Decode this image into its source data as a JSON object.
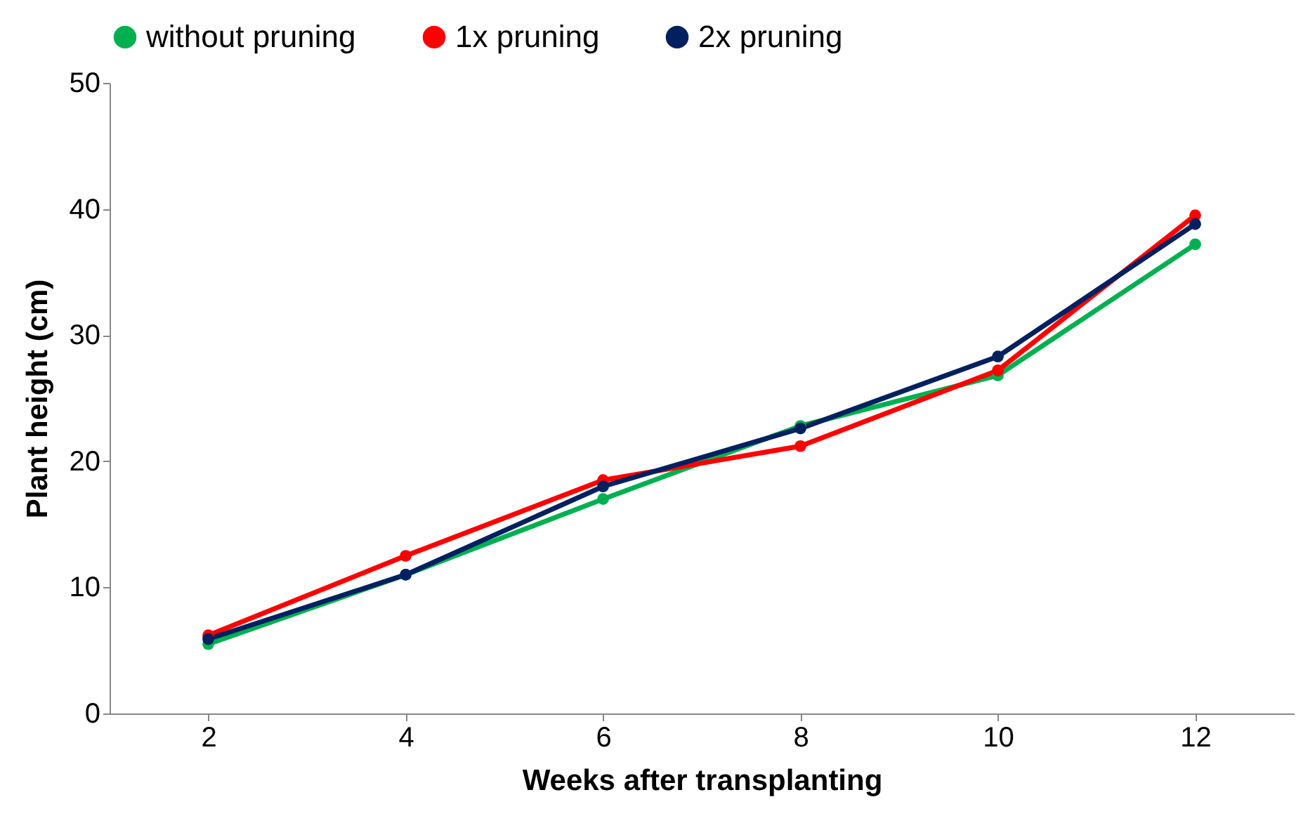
{
  "chart_data": {
    "type": "line",
    "xlabel": "Weeks after transplanting",
    "ylabel": "Plant height (cm)",
    "categories": [
      "2",
      "4",
      "6",
      "8",
      "10",
      "12"
    ],
    "series": [
      {
        "name": "without pruning",
        "color": "#00b050",
        "values": [
          5.5,
          11.0,
          17.0,
          22.8,
          26.8,
          37.2
        ]
      },
      {
        "name": "1x pruning",
        "color": "#ff0000",
        "values": [
          6.2,
          12.5,
          18.5,
          21.2,
          27.2,
          39.5
        ]
      },
      {
        "name": "2x pruning",
        "color": "#002060",
        "values": [
          5.9,
          11.0,
          18.0,
          22.6,
          28.3,
          38.8
        ]
      }
    ],
    "ylim": [
      0,
      50
    ],
    "yticks": [
      0,
      10,
      20,
      30,
      40,
      50
    ],
    "grid": false,
    "legend": "top",
    "marker": "circle",
    "line_style": "solid"
  }
}
